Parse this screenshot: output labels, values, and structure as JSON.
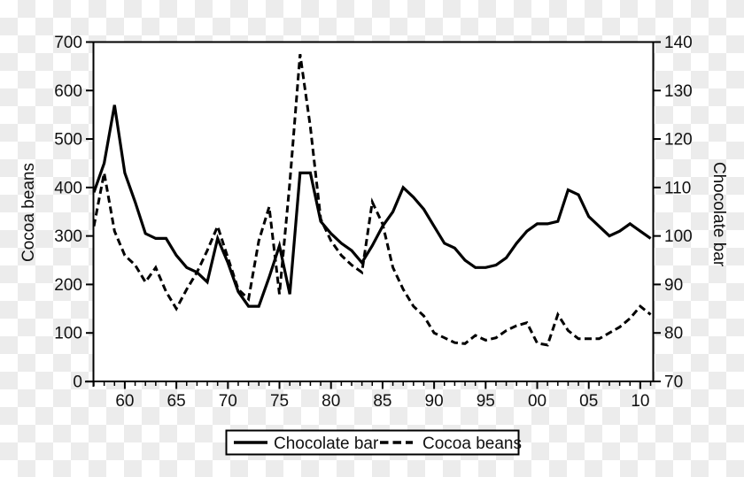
{
  "chart_data": {
    "type": "line",
    "title": "",
    "x_label": "",
    "years": [
      1957,
      1958,
      1959,
      1960,
      1961,
      1962,
      1963,
      1964,
      1965,
      1966,
      1967,
      1968,
      1969,
      1970,
      1971,
      1972,
      1973,
      1974,
      1975,
      1976,
      1977,
      1978,
      1979,
      1980,
      1981,
      1982,
      1983,
      1984,
      1985,
      1986,
      1987,
      1988,
      1989,
      1990,
      1991,
      1992,
      1993,
      1994,
      1995,
      1996,
      1997,
      1998,
      1999,
      2000,
      2001,
      2002,
      2003,
      2004,
      2005,
      2006,
      2007,
      2008,
      2009,
      2010,
      2011
    ],
    "x_tick_years": [
      1960,
      1965,
      1970,
      1975,
      1980,
      1985,
      1990,
      1995,
      2000,
      2005,
      2010
    ],
    "x_tick_labels": [
      "60",
      "65",
      "70",
      "75",
      "80",
      "85",
      "90",
      "95",
      "00",
      "05",
      "10"
    ],
    "left_axis": {
      "label": "Cocoa beans",
      "min": 0,
      "max": 700,
      "ticks": [
        0,
        100,
        200,
        300,
        400,
        500,
        600,
        700
      ]
    },
    "right_axis": {
      "label": "Chocolate bar",
      "min": 70,
      "max": 140,
      "ticks": [
        70,
        80,
        90,
        100,
        110,
        120,
        130,
        140
      ]
    },
    "grid": false,
    "series": [
      {
        "name": "Chocolate bar",
        "axis": "right",
        "line_style": "solid",
        "color": "#000000",
        "values": [
          109,
          115,
          127,
          113,
          107,
          100.5,
          99.5,
          99.5,
          96,
          93.5,
          92.5,
          90.5,
          99.5,
          94.5,
          88.5,
          85.5,
          85.5,
          91.5,
          98,
          88,
          113,
          113,
          103,
          100.5,
          98.5,
          97,
          94.5,
          98,
          102,
          105,
          110,
          108,
          105.5,
          102,
          98.5,
          97.5,
          95,
          93.5,
          93.5,
          94,
          95.5,
          98.5,
          101,
          102.5,
          102.5,
          103,
          109.5,
          108.5,
          104,
          102,
          100,
          101,
          102.5,
          101,
          99.5
        ]
      },
      {
        "name": "Cocoa beans",
        "axis": "left",
        "line_style": "dashed",
        "color": "#000000",
        "values": [
          320,
          430,
          310,
          260,
          240,
          205,
          235,
          185,
          150,
          190,
          225,
          270,
          320,
          255,
          190,
          170,
          290,
          360,
          180,
          410,
          675,
          525,
          335,
          290,
          260,
          240,
          225,
          370,
          325,
          235,
          190,
          155,
          135,
          100,
          90,
          80,
          78,
          95,
          85,
          90,
          105,
          115,
          121,
          79,
          75,
          138,
          105,
          88,
          88,
          88,
          100,
          112,
          130,
          155,
          138
        ]
      }
    ],
    "legend": {
      "position": "bottom-center",
      "entries": [
        {
          "label": "Chocolate bar",
          "line": "solid"
        },
        {
          "label": "Cocoa beans",
          "line": "dashed"
        }
      ]
    }
  },
  "colors": {
    "line": "#000000",
    "text": "#111111",
    "plot_background": "#ffffff",
    "checker_square": "#ececec"
  }
}
